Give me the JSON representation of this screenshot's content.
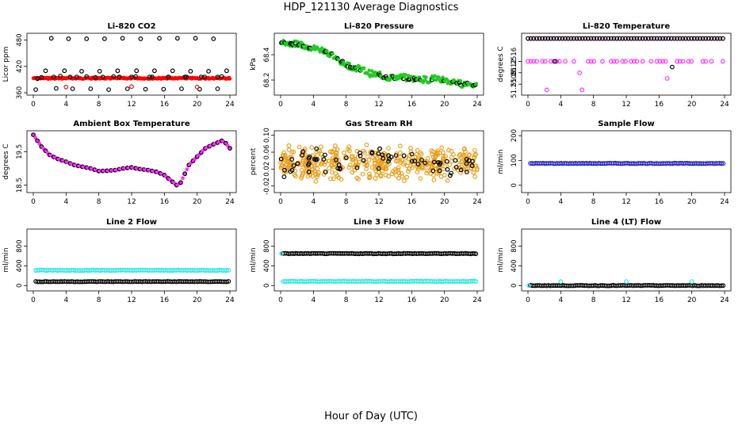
{
  "figure": {
    "title": "HDP_121130  Average Diagnostics",
    "xlabel": "Hour of Day (UTC)"
  },
  "chart_data": [
    {
      "type": "scatter",
      "title": "Li-820 CO2",
      "ylabel": "Licor ppm",
      "xlim": [
        0,
        24
      ],
      "xticks": [
        "0",
        "4",
        "8",
        "12",
        "16",
        "20",
        "24"
      ],
      "ylim": [
        360,
        490
      ],
      "yticks": [
        {
          "v": 360,
          "t": "360"
        },
        {
          "v": 420,
          "t": "420"
        },
        {
          "v": 480,
          "t": "480"
        }
      ],
      "series": [
        {
          "color": "#000000",
          "x": [
            0.3,
            1,
            1.5,
            2.2,
            2.8,
            3.3,
            3.8,
            4.3,
            4.8,
            5.3,
            5.9,
            6.5,
            7,
            7.6,
            8.1,
            8.7,
            9.2,
            9.8,
            10.3,
            10.9,
            11.5,
            12,
            12.6,
            13.1,
            13.7,
            14.2,
            14.8,
            15.4,
            15.9,
            16.5,
            17,
            17.6,
            18.1,
            18.7,
            19.2,
            19.8,
            20.3,
            20.9,
            21.4,
            22,
            22.5,
            23,
            23.6,
            0.5,
            2.5,
            4.5,
            6.5,
            8.5,
            10.5,
            12.5,
            14.5,
            16.5,
            18.5,
            20.5,
            22.5
          ],
          "y": [
            367,
            395,
            410,
            484,
            370,
            398,
            410,
            483,
            369,
            396,
            409,
            483,
            369,
            395,
            409,
            483,
            367,
            397,
            410,
            484,
            369,
            396,
            410,
            483,
            368,
            396,
            410,
            484,
            368,
            396,
            410,
            484,
            369,
            396,
            409,
            484,
            368,
            396,
            409,
            483,
            369,
            397,
            410,
            392,
            396,
            396,
            397,
            396,
            396,
            397,
            396,
            396,
            396,
            396,
            396
          ]
        },
        {
          "color": "#e41a1c",
          "x": [
            4,
            12,
            20
          ],
          "y": [
            373,
            374,
            373
          ]
        }
      ],
      "band": {
        "color": "#ff0000",
        "y": 393
      }
    },
    {
      "type": "scatter",
      "title": "Li-820 Pressure",
      "ylabel": "kPa",
      "xlim": [
        0,
        24
      ],
      "xticks": [
        "0",
        "4",
        "8",
        "12",
        "16",
        "20",
        "24"
      ],
      "ylim": [
        68.1,
        68.55
      ],
      "yticks": [
        {
          "v": 68.2,
          "t": "68.2"
        },
        {
          "v": 68.4,
          "t": "68.4"
        }
      ],
      "series": [
        {
          "color": "#1fcc1f",
          "x": [
            0,
            1,
            2,
            3,
            4,
            5,
            6,
            7,
            8,
            9,
            10,
            11,
            12,
            13,
            14,
            15,
            16,
            17,
            18,
            19,
            20,
            21,
            22,
            23,
            24
          ],
          "y": [
            68.5,
            68.49,
            68.48,
            68.47,
            68.45,
            68.44,
            68.41,
            68.36,
            68.32,
            68.3,
            68.28,
            68.25,
            68.24,
            68.22,
            68.22,
            68.22,
            68.21,
            68.21,
            68.2,
            68.22,
            68.2,
            68.18,
            68.17,
            68.17,
            68.16
          ],
          "spread": 0.025
        }
      ]
    },
    {
      "type": "scatter",
      "title": "Li-820 Temperature",
      "ylabel": "degrees C",
      "xlim": [
        0,
        24
      ],
      "xticks": [
        "0",
        "4",
        "8",
        "12",
        "16",
        "20",
        "24"
      ],
      "ylim": [
        51.2505,
        51.2525
      ],
      "yticks": [
        {
          "v": 51.2508,
          "t": "51.2508"
        },
        {
          "v": 51.2512,
          "t": "51.2512"
        },
        {
          "v": 51.2516,
          "t": "51.2516"
        }
      ],
      "series": [
        {
          "color": "#ff33ff",
          "levels": [
            51.2524,
            51.2516
          ],
          "x": [
            0,
            24
          ]
        },
        {
          "color": "#000000",
          "levels": [
            51.2524
          ],
          "x": [
            0,
            24
          ]
        }
      ],
      "outliers": [
        {
          "x": 2.3,
          "y": 51.2506,
          "color": "#ff33ff"
        },
        {
          "x": 6.6,
          "y": 51.2506,
          "color": "#ff33ff"
        },
        {
          "x": 6.3,
          "y": 51.2512,
          "color": "#ff33ff"
        },
        {
          "x": 17.0,
          "y": 51.251,
          "color": "#ff33ff"
        },
        {
          "x": 3.3,
          "y": 51.2516,
          "color": "#000000"
        },
        {
          "x": 17.6,
          "y": 51.2514,
          "color": "#000000"
        }
      ]
    },
    {
      "type": "line",
      "title": "Ambient Box Temperature",
      "ylabel": "degrees C",
      "xlim": [
        0,
        24
      ],
      "xticks": [
        "0",
        "4",
        "8",
        "12",
        "16",
        "20",
        "24"
      ],
      "ylim": [
        18.35,
        20.05
      ],
      "yticks": [
        {
          "v": 18.5,
          "t": "18.5"
        },
        {
          "v": 19.5,
          "t": "19.5"
        }
      ],
      "series": [
        {
          "color": "#ff33ff",
          "x": [
            0,
            1,
            2,
            3,
            4,
            5,
            6,
            7,
            8,
            9,
            10,
            11,
            12,
            13,
            14,
            15,
            16,
            17,
            17.5,
            18,
            19,
            20,
            21,
            22,
            23,
            23.5,
            24
          ],
          "y": [
            20.0,
            19.65,
            19.4,
            19.28,
            19.2,
            19.1,
            19.05,
            19.0,
            18.92,
            18.93,
            18.95,
            19.0,
            19.03,
            18.98,
            18.95,
            18.9,
            18.8,
            18.6,
            18.5,
            18.58,
            19.1,
            19.35,
            19.6,
            19.72,
            19.82,
            19.75,
            19.6
          ]
        }
      ]
    },
    {
      "type": "scatter",
      "title": "Gas Stream RH",
      "ylabel": "percent",
      "xlim": [
        0,
        24
      ],
      "xticks": [
        "0",
        "4",
        "8",
        "12",
        "16",
        "20",
        "24"
      ],
      "ylim": [
        -0.03,
        0.105
      ],
      "yticks": [
        {
          "v": -0.02,
          "t": "-0.02"
        },
        {
          "v": 0.02,
          "t": "0.02"
        },
        {
          "v": 0.06,
          "t": "0.06"
        },
        {
          "v": 0.1,
          "t": "0.10"
        }
      ],
      "series": [
        {
          "color": "#e8a020",
          "center": 0.035,
          "spread": 0.045,
          "n": 420
        },
        {
          "color": "#000000",
          "center": 0.035,
          "spread": 0.04,
          "n": 70
        }
      ]
    },
    {
      "type": "scatter",
      "title": "Sample Flow",
      "ylabel": "ml/min",
      "xlim": [
        0,
        24
      ],
      "xticks": [
        "0",
        "4",
        "8",
        "12",
        "16",
        "20",
        "24"
      ],
      "ylim": [
        -20,
        210
      ],
      "yticks": [
        {
          "v": 0,
          "t": "0"
        },
        {
          "v": 100,
          "t": "100"
        },
        {
          "v": 200,
          "t": "200"
        }
      ],
      "series": [
        {
          "color": "#2020c0",
          "constant": 88
        }
      ]
    },
    {
      "type": "scatter",
      "title": "Line 2 Flow",
      "ylabel": "ml/min",
      "xlim": [
        0,
        24
      ],
      "xticks": [
        "0",
        "4",
        "8",
        "12",
        "16",
        "20",
        "24"
      ],
      "ylim": [
        -60,
        1100
      ],
      "yticks": [
        {
          "v": 0,
          "t": "0"
        },
        {
          "v": 400,
          "t": "400"
        },
        {
          "v": 800,
          "t": "800"
        }
      ],
      "series": [
        {
          "color": "#33e6e6",
          "constant": 310
        },
        {
          "color": "#000000",
          "constant": 80
        }
      ]
    },
    {
      "type": "scatter",
      "title": "Line 3 Flow",
      "ylabel": "ml/min",
      "xlim": [
        0,
        24
      ],
      "xticks": [
        "0",
        "4",
        "8",
        "12",
        "16",
        "20",
        "24"
      ],
      "ylim": [
        -60,
        1100
      ],
      "yticks": [
        {
          "v": 0,
          "t": "0"
        },
        {
          "v": 400,
          "t": "400"
        },
        {
          "v": 800,
          "t": "800"
        }
      ],
      "series": [
        {
          "color": "#000000",
          "constant": 650
        },
        {
          "color": "#33e6e6",
          "constant": 85
        }
      ],
      "outliers": [
        {
          "x": 0.1,
          "y": 650,
          "color": "#33e6e6"
        }
      ]
    },
    {
      "type": "scatter",
      "title": "Line 4 (LT) Flow",
      "ylabel": "ml/min",
      "xlim": [
        0,
        24
      ],
      "xticks": [
        "0",
        "4",
        "8",
        "12",
        "16",
        "20",
        "24"
      ],
      "ylim": [
        -60,
        1100
      ],
      "yticks": [
        {
          "v": 0,
          "t": "0"
        },
        {
          "v": 400,
          "t": "400"
        },
        {
          "v": 800,
          "t": "800"
        }
      ],
      "series": [
        {
          "color": "#000000",
          "constant": 0
        }
      ],
      "outliers": [
        {
          "x": 0.1,
          "y": 0,
          "color": "#33e6e6"
        },
        {
          "x": 4.0,
          "y": 80,
          "color": "#33e6e6"
        },
        {
          "x": 12.0,
          "y": 80,
          "color": "#33e6e6"
        },
        {
          "x": 20.0,
          "y": 80,
          "color": "#33e6e6"
        }
      ]
    }
  ]
}
